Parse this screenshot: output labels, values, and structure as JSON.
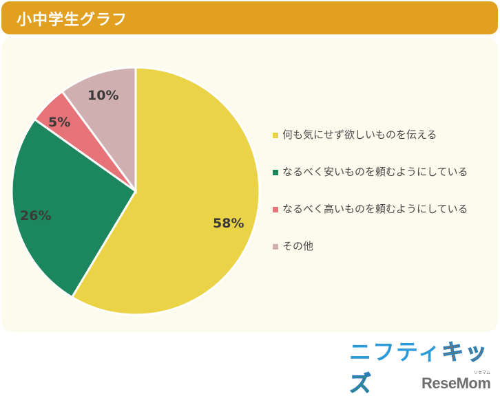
{
  "header": {
    "title": "小中学生グラフ"
  },
  "chart_data": {
    "type": "pie",
    "title": "小中学生グラフ",
    "categories": [
      "何も気にせず欲しいものを伝える",
      "なるべく安いものを頼むようにしている",
      "なるべく高いものを頼むようにしている",
      "その他"
    ],
    "values": [
      58,
      26,
      5,
      10
    ],
    "labels": [
      "58%",
      "26%",
      "5%",
      "10%"
    ],
    "colors": [
      "#ebd348",
      "#1c875f",
      "#e57377",
      "#d0afb0"
    ],
    "start_angle": "12 o'clock, clockwise",
    "legend_position": "right"
  },
  "legend": {
    "items": [
      {
        "label": "何も気にせず欲しいものを伝える",
        "color": "#ebd348"
      },
      {
        "label": "なるべく安いものを頼むようにしている",
        "color": "#1c875f"
      },
      {
        "label": "なるべく高いものを頼むようにしている",
        "color": "#e57377"
      },
      {
        "label": "その他",
        "color": "#d0afb0"
      }
    ]
  },
  "logos": {
    "nifty_part1": "ニフティ",
    "nifty_part2": "キッ",
    "nifty_part3": "ズ",
    "resemom": "ReseMom",
    "resemom_ruby": "リセマム"
  }
}
